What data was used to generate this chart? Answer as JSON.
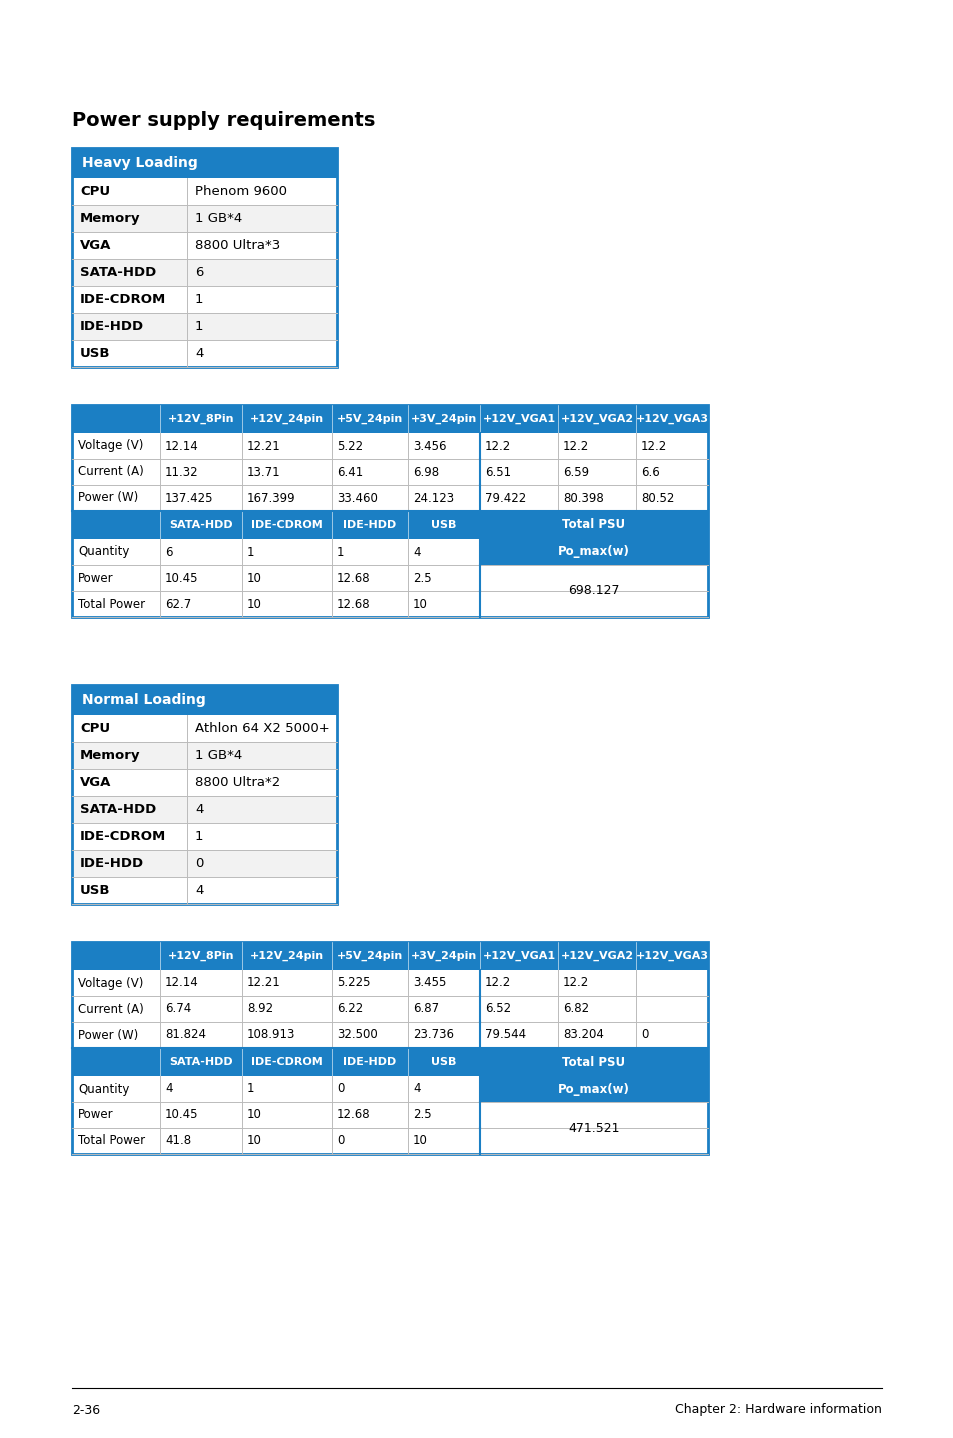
{
  "title": "Power supply requirements",
  "page_footer_left": "2-36",
  "page_footer_right": "Chapter 2: Hardware information",
  "blue": "#1b7fc4",
  "white": "#ffffff",
  "border": "#1b7fc4",
  "line_color": "#bbbbbb",
  "heavy_loading": {
    "header": "Heavy Loading",
    "rows": [
      [
        "CPU",
        "Phenom 9600"
      ],
      [
        "Memory",
        "1 GB*4"
      ],
      [
        "VGA",
        "8800 Ultra*3"
      ],
      [
        "SATA-HDD",
        "6"
      ],
      [
        "IDE-CDROM",
        "1"
      ],
      [
        "IDE-HDD",
        "1"
      ],
      [
        "USB",
        "4"
      ]
    ]
  },
  "normal_loading": {
    "header": "Normal Loading",
    "rows": [
      [
        "CPU",
        "Athlon 64 X2 5000+"
      ],
      [
        "Memory",
        "1 GB*4"
      ],
      [
        "VGA",
        "8800 Ultra*2"
      ],
      [
        "SATA-HDD",
        "4"
      ],
      [
        "IDE-CDROM",
        "1"
      ],
      [
        "IDE-HDD",
        "0"
      ],
      [
        "USB",
        "4"
      ]
    ]
  },
  "heavy_data": {
    "top_headers": [
      "",
      "+12V_8Pin",
      "+12V_24pin",
      "+5V_24pin",
      "+3V_24pin",
      "+12V_VGA1",
      "+12V_VGA2",
      "+12V_VGA3"
    ],
    "top_rows": [
      [
        "Voltage (V)",
        "12.14",
        "12.21",
        "5.22",
        "3.456",
        "12.2",
        "12.2",
        "12.2"
      ],
      [
        "Current (A)",
        "11.32",
        "13.71",
        "6.41",
        "6.98",
        "6.51",
        "6.59",
        "6.6"
      ],
      [
        "Power (W)",
        "137.425",
        "167.399",
        "33.460",
        "24.123",
        "79.422",
        "80.398",
        "80.52"
      ]
    ],
    "bot_headers_left": [
      "",
      "SATA-HDD",
      "IDE-CDROM",
      "IDE-HDD",
      "USB"
    ],
    "bot_header_right": "Total PSU",
    "bot_rows": [
      [
        "Quantity",
        "6",
        "1",
        "1",
        "4"
      ],
      [
        "Power",
        "10.45",
        "10",
        "12.68",
        "2.5"
      ],
      [
        "Total Power",
        "62.7",
        "10",
        "12.68",
        "10"
      ]
    ],
    "po_max": "Po_max(w)",
    "total_val": "698.127"
  },
  "normal_data": {
    "top_headers": [
      "",
      "+12V_8Pin",
      "+12V_24pin",
      "+5V_24pin",
      "+3V_24pin",
      "+12V_VGA1",
      "+12V_VGA2",
      "+12V_VGA3"
    ],
    "top_rows": [
      [
        "Voltage (V)",
        "12.14",
        "12.21",
        "5.225",
        "3.455",
        "12.2",
        "12.2",
        ""
      ],
      [
        "Current (A)",
        "6.74",
        "8.92",
        "6.22",
        "6.87",
        "6.52",
        "6.82",
        ""
      ],
      [
        "Power (W)",
        "81.824",
        "108.913",
        "32.500",
        "23.736",
        "79.544",
        "83.204",
        "0"
      ]
    ],
    "bot_headers_left": [
      "",
      "SATA-HDD",
      "IDE-CDROM",
      "IDE-HDD",
      "USB"
    ],
    "bot_header_right": "Total PSU",
    "bot_rows": [
      [
        "Quantity",
        "4",
        "1",
        "0",
        "4"
      ],
      [
        "Power",
        "10.45",
        "10",
        "12.68",
        "2.5"
      ],
      [
        "Total Power",
        "41.8",
        "10",
        "0",
        "10"
      ]
    ],
    "po_max": "Po_max(w)",
    "total_val": "471.521"
  }
}
